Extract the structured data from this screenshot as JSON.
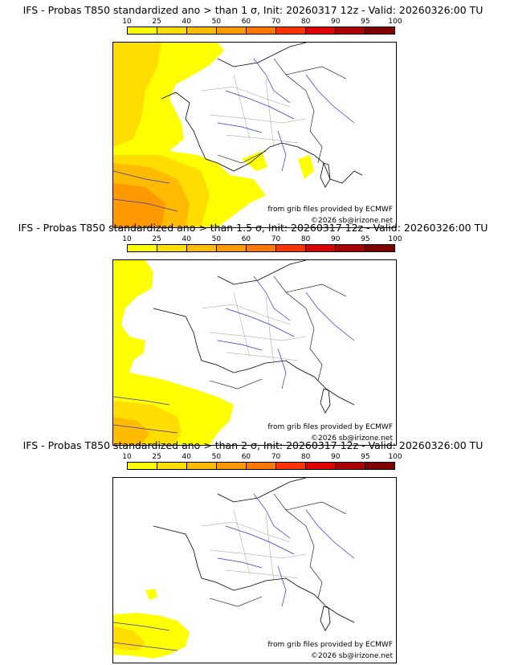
{
  "panels": [
    {
      "title": "IFS - Probas T850  standardized ano > than 1 σ, Init: 20260317 12z - Valid: 20260326:00 TU",
      "credit_source": "from grib files provided by ECMWF",
      "credit_copyright": "©2026 sb@irizone.net"
    },
    {
      "title": "IFS - Probas T850  standardized ano > than 1.5 σ, Init: 20260317 12z - Valid: 20260326:00 TU",
      "credit_source": "from grib files provided by ECMWF",
      "credit_copyright": "©2026 sb@irizone.net"
    },
    {
      "title": "IFS - Probas T850  standardized ano > than 2 σ, Init: 20260317 12z - Valid: 20260326:00 TU",
      "credit_source": "from grib files provided by ECMWF",
      "credit_copyright": "©2026 sb@irizone.net"
    }
  ],
  "colorbar": {
    "labels": [
      "10",
      "25",
      "40",
      "50",
      "60",
      "70",
      "80",
      "90",
      "95",
      "100"
    ],
    "colors": [
      "#ffff00",
      "#ffdd00",
      "#ffbb00",
      "#ff9900",
      "#ff7700",
      "#ff3300",
      "#dd0000",
      "#aa0000",
      "#800000"
    ]
  },
  "map_colors": {
    "coast": "#000000",
    "rivers": "#3333cc",
    "borders": "#999999"
  }
}
